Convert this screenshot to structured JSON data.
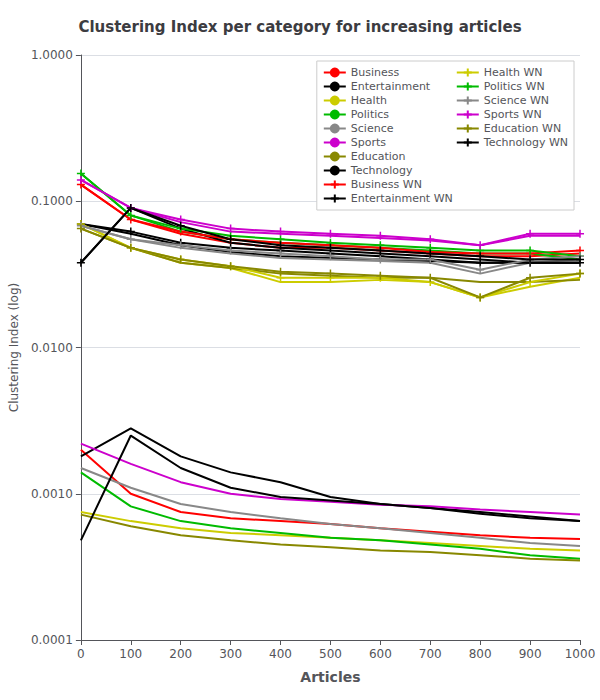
{
  "chart_data": {
    "type": "line",
    "title": "Clustering Index per category for increasing articles",
    "xlabel": "Articles",
    "ylabel": "Clustering Index (log)",
    "x": [
      0,
      100,
      200,
      300,
      400,
      500,
      600,
      700,
      800,
      900,
      1000
    ],
    "series": [
      {
        "name": "Business",
        "color": "#ff0000",
        "marker": "none",
        "values": [
          0.13,
          0.075,
          0.06,
          0.052,
          0.048,
          0.048,
          0.046,
          0.044,
          0.042,
          0.042,
          0.044
        ],
        "lower": [
          0.002,
          0.001,
          0.00075,
          0.00068,
          0.00065,
          0.00062,
          0.00058,
          0.00055,
          0.00052,
          0.0005,
          0.00049
        ]
      },
      {
        "name": "Entertainment",
        "color": "#000000",
        "marker": "none",
        "values": [
          0.07,
          0.06,
          0.05,
          0.045,
          0.042,
          0.041,
          0.04,
          0.039,
          0.038,
          0.038,
          0.038
        ],
        "lower": [
          0.0018,
          0.0028,
          0.0018,
          0.0014,
          0.0012,
          0.00095,
          0.00085,
          0.0008,
          0.00075,
          0.0007,
          0.00065
        ]
      },
      {
        "name": "Health",
        "color": "#cccc00",
        "marker": "none",
        "values": [
          0.07,
          0.048,
          0.038,
          0.035,
          0.028,
          0.028,
          0.029,
          0.028,
          0.022,
          0.026,
          0.03
        ],
        "lower": [
          0.00075,
          0.00065,
          0.00058,
          0.00054,
          0.00052,
          0.0005,
          0.00048,
          0.00046,
          0.00044,
          0.00042,
          0.00041
        ]
      },
      {
        "name": "Politics",
        "color": "#00bb00",
        "marker": "none",
        "values": [
          0.155,
          0.08,
          0.062,
          0.055,
          0.052,
          0.05,
          0.048,
          0.046,
          0.044,
          0.044,
          0.04
        ],
        "lower": [
          0.0014,
          0.00082,
          0.00065,
          0.00058,
          0.00054,
          0.0005,
          0.00048,
          0.00045,
          0.00042,
          0.00038,
          0.00036
        ]
      },
      {
        "name": "Science",
        "color": "#888888",
        "marker": "none",
        "values": [
          0.068,
          0.055,
          0.048,
          0.044,
          0.041,
          0.04,
          0.039,
          0.038,
          0.032,
          0.038,
          0.04
        ],
        "lower": [
          0.0015,
          0.0011,
          0.00085,
          0.00075,
          0.00068,
          0.00062,
          0.00058,
          0.00054,
          0.0005,
          0.00046,
          0.00044
        ]
      },
      {
        "name": "Sports",
        "color": "#cc00cc",
        "marker": "none",
        "values": [
          0.14,
          0.09,
          0.072,
          0.062,
          0.06,
          0.058,
          0.056,
          0.054,
          0.05,
          0.058,
          0.058
        ],
        "lower": [
          0.0022,
          0.0016,
          0.0012,
          0.001,
          0.00092,
          0.00088,
          0.00084,
          0.00082,
          0.00078,
          0.00075,
          0.00072
        ]
      },
      {
        "name": "Education",
        "color": "#888800",
        "marker": "none",
        "values": [
          0.065,
          0.048,
          0.038,
          0.035,
          0.032,
          0.031,
          0.03,
          0.03,
          0.028,
          0.028,
          0.029
        ],
        "lower": [
          0.00072,
          0.0006,
          0.00052,
          0.00048,
          0.00045,
          0.00043,
          0.00041,
          0.0004,
          0.00038,
          0.00036,
          0.00035
        ]
      },
      {
        "name": "Technology",
        "color": "#000000",
        "marker": "none",
        "values": [
          0.038,
          0.09,
          0.065,
          0.052,
          0.048,
          0.046,
          0.044,
          0.042,
          0.04,
          0.038,
          0.038
        ],
        "lower": [
          0.00048,
          0.0025,
          0.0015,
          0.0011,
          0.00095,
          0.0009,
          0.00085,
          0.0008,
          0.00073,
          0.00068,
          0.00065
        ]
      },
      {
        "name": "Business WN",
        "color": "#ff0000",
        "marker": "plus",
        "values": [
          0.13,
          0.075,
          0.062,
          0.055,
          0.052,
          0.05,
          0.048,
          0.045,
          0.044,
          0.044,
          0.046
        ]
      },
      {
        "name": "Entertainment WN",
        "color": "#000000",
        "marker": "plus",
        "values": [
          0.07,
          0.062,
          0.052,
          0.048,
          0.046,
          0.044,
          0.042,
          0.04,
          0.038,
          0.038,
          0.038
        ]
      },
      {
        "name": "Health WN",
        "color": "#cccc00",
        "marker": "plus",
        "values": [
          0.07,
          0.048,
          0.04,
          0.036,
          0.03,
          0.03,
          0.03,
          0.028,
          0.022,
          0.028,
          0.032
        ]
      },
      {
        "name": "Politics WN",
        "color": "#00bb00",
        "marker": "plus",
        "values": [
          0.155,
          0.08,
          0.065,
          0.058,
          0.055,
          0.052,
          0.05,
          0.048,
          0.046,
          0.046,
          0.042
        ]
      },
      {
        "name": "Science WN",
        "color": "#888888",
        "marker": "plus",
        "values": [
          0.068,
          0.055,
          0.05,
          0.046,
          0.044,
          0.042,
          0.04,
          0.04,
          0.034,
          0.04,
          0.042
        ]
      },
      {
        "name": "Sports WN",
        "color": "#cc00cc",
        "marker": "plus",
        "values": [
          0.14,
          0.09,
          0.075,
          0.065,
          0.062,
          0.06,
          0.058,
          0.055,
          0.05,
          0.06,
          0.06
        ]
      },
      {
        "name": "Education WN",
        "color": "#888800",
        "marker": "plus",
        "values": [
          0.065,
          0.048,
          0.04,
          0.036,
          0.033,
          0.032,
          0.031,
          0.03,
          0.022,
          0.03,
          0.032
        ]
      },
      {
        "name": "Technology WN",
        "color": "#000000",
        "marker": "plus",
        "values": [
          0.038,
          0.09,
          0.068,
          0.055,
          0.05,
          0.048,
          0.046,
          0.044,
          0.042,
          0.04,
          0.04
        ]
      }
    ],
    "xlim": [
      0,
      1000
    ],
    "xticks": [
      0,
      100,
      200,
      300,
      400,
      500,
      600,
      700,
      800,
      900,
      1000
    ],
    "ylim": [
      0.0001,
      1.0
    ],
    "yticks": [
      0.0001,
      {
        "value": 0.001,
        "label": "0.0010"
      },
      {
        "value": 0.01,
        "label": "0.0100"
      },
      {
        "value": 0.1,
        "label": "0.1000"
      },
      {
        "value": 1,
        "label": "1.0000"
      }
    ],
    "log": "y",
    "grid": true,
    "legend": "upper right"
  }
}
